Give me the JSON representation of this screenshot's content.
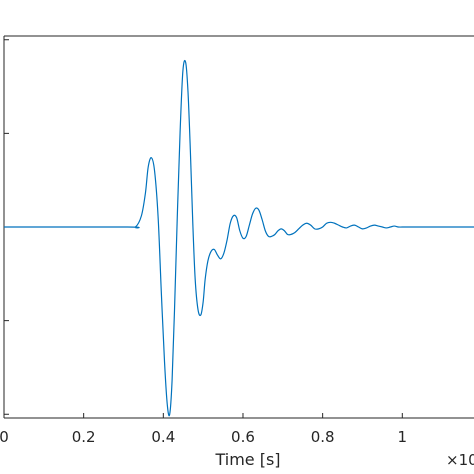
{
  "chart_data": {
    "type": "line",
    "title": "",
    "xlabel": "Time [s]",
    "ylabel": "",
    "x_exponent_label": "×10",
    "xlim": [
      0,
      1.18
    ],
    "ylim": [
      -1.02,
      1.02
    ],
    "x_ticks": [
      0,
      0.2,
      0.4,
      0.6,
      0.8,
      1
    ],
    "x_tick_labels": [
      "0",
      "0.2",
      "0.4",
      "0.6",
      "0.8",
      "1"
    ],
    "y_ticks": [
      -1,
      -0.5,
      0,
      0.5,
      1
    ],
    "y_tick_labels": [
      "",
      "",
      "",
      "",
      ""
    ],
    "grid": false,
    "series": [
      {
        "color": "#0072BD",
        "x": [
          0.0,
          0.31,
          0.33,
          0.345,
          0.355,
          0.362,
          0.37,
          0.378,
          0.387,
          0.395,
          0.403,
          0.41,
          0.416,
          0.422,
          0.428,
          0.435,
          0.442,
          0.449,
          0.456,
          0.462,
          0.468,
          0.474,
          0.48,
          0.487,
          0.494,
          0.5,
          0.505,
          0.512,
          0.52,
          0.528,
          0.536,
          0.544,
          0.552,
          0.56,
          0.568,
          0.576,
          0.584,
          0.592,
          0.6,
          0.608,
          0.616,
          0.624,
          0.632,
          0.64,
          0.648,
          0.656,
          0.664,
          0.672,
          0.68,
          0.688,
          0.696,
          0.704,
          0.712,
          0.72,
          0.73,
          0.74,
          0.75,
          0.76,
          0.77,
          0.78,
          0.79,
          0.8,
          0.81,
          0.82,
          0.83,
          0.84,
          0.85,
          0.86,
          0.87,
          0.88,
          0.89,
          0.9,
          0.91,
          0.92,
          0.93,
          0.94,
          0.95,
          0.96,
          0.97,
          0.98,
          0.99,
          1.0,
          1.02,
          1.05,
          1.08,
          1.11,
          1.14,
          1.18
        ],
        "y": [
          0.0,
          0.0,
          0.0,
          0.06,
          0.18,
          0.32,
          0.37,
          0.3,
          0.05,
          -0.35,
          -0.72,
          -0.95,
          -1.0,
          -0.82,
          -0.45,
          0.05,
          0.5,
          0.83,
          0.88,
          0.72,
          0.4,
          0.02,
          -0.28,
          -0.44,
          -0.47,
          -0.4,
          -0.28,
          -0.18,
          -0.13,
          -0.12,
          -0.15,
          -0.17,
          -0.14,
          -0.07,
          0.02,
          0.06,
          0.05,
          -0.02,
          -0.06,
          -0.05,
          0.01,
          0.07,
          0.1,
          0.09,
          0.04,
          -0.02,
          -0.05,
          -0.05,
          -0.04,
          -0.02,
          -0.01,
          -0.02,
          -0.04,
          -0.04,
          -0.03,
          -0.01,
          0.01,
          0.02,
          0.01,
          -0.01,
          -0.01,
          0.0,
          0.02,
          0.025,
          0.02,
          0.01,
          0.0,
          -0.005,
          0.005,
          0.01,
          0.0,
          -0.01,
          -0.005,
          0.005,
          0.01,
          0.005,
          0.0,
          -0.005,
          0.0,
          0.005,
          0.0,
          0.0,
          0.0,
          0.0,
          0.0,
          0.0,
          0.0,
          0.0
        ]
      }
    ]
  }
}
